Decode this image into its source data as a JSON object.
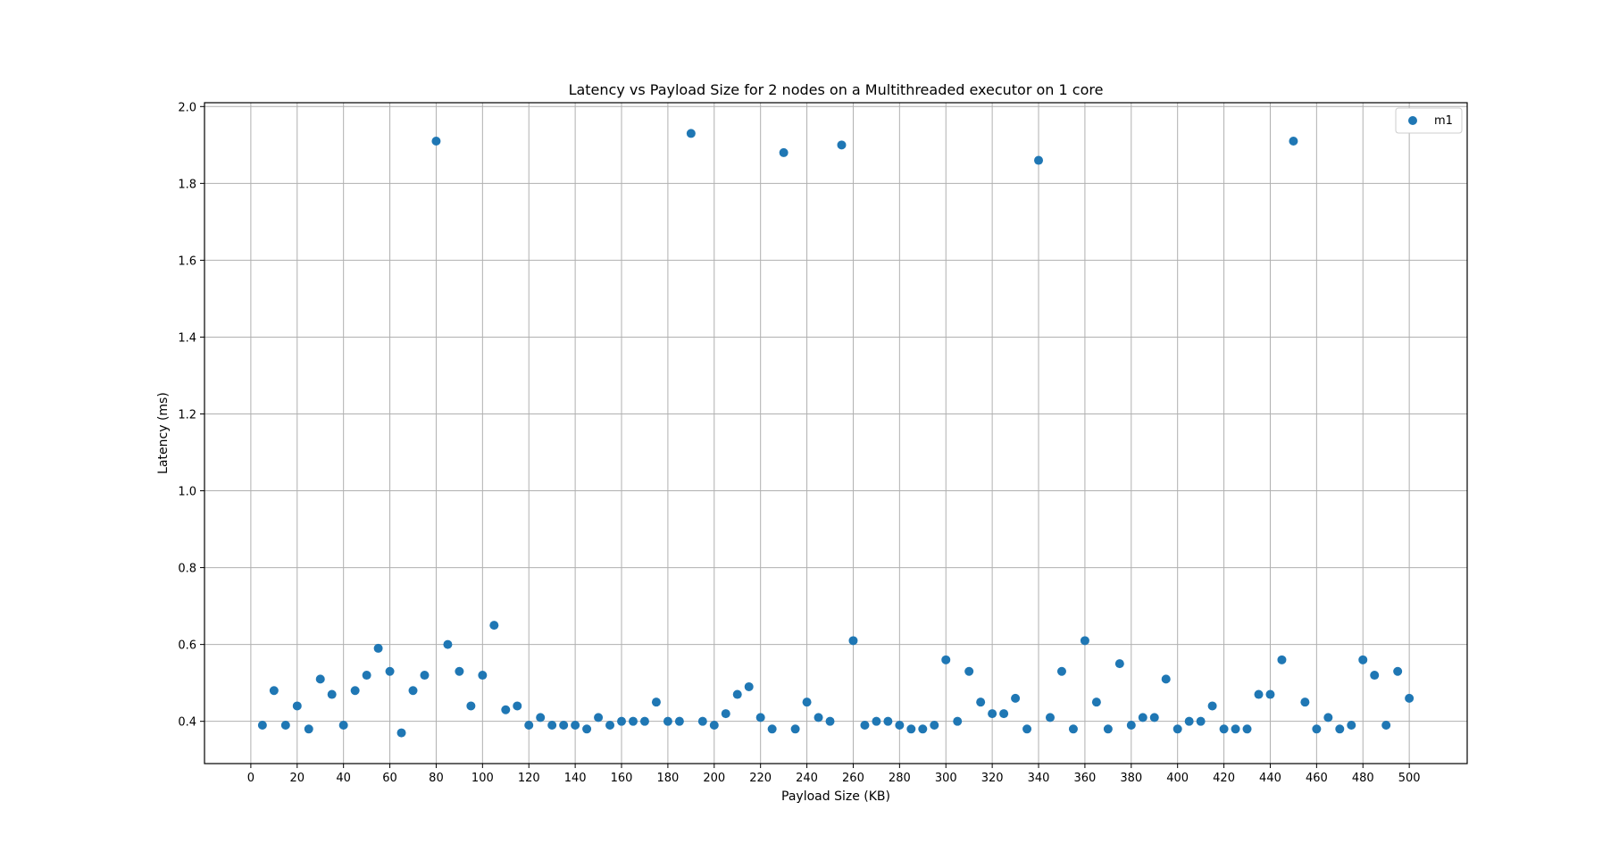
{
  "chart_data": {
    "type": "scatter",
    "title": "Latency vs Payload Size for 2 nodes on a Multithreaded executor on 1 core",
    "xlabel": "Payload Size (KB)",
    "ylabel": "Latency (ms)",
    "xlim": [
      -20,
      525
    ],
    "ylim": [
      0.29,
      2.01
    ],
    "xticks": [
      0,
      20,
      40,
      60,
      80,
      100,
      120,
      140,
      160,
      180,
      200,
      220,
      240,
      260,
      280,
      300,
      320,
      340,
      360,
      380,
      400,
      420,
      440,
      460,
      480,
      500
    ],
    "yticks": [
      0.4,
      0.6,
      0.8,
      1.0,
      1.2,
      1.4,
      1.6,
      1.8,
      2.0
    ],
    "ytick_labels": [
      "0.4",
      "0.6",
      "0.8",
      "1.0",
      "1.2",
      "1.4",
      "1.6",
      "1.8",
      "2.0"
    ],
    "grid": true,
    "legend_position": "top-right",
    "series": [
      {
        "name": "m1",
        "color": "#1f77b4",
        "x": [
          5,
          10,
          15,
          20,
          25,
          30,
          35,
          40,
          45,
          50,
          55,
          60,
          65,
          70,
          75,
          80,
          85,
          90,
          95,
          100,
          105,
          110,
          115,
          120,
          125,
          130,
          135,
          140,
          145,
          150,
          155,
          160,
          165,
          170,
          175,
          180,
          185,
          190,
          195,
          200,
          205,
          210,
          215,
          220,
          225,
          230,
          235,
          240,
          245,
          250,
          255,
          260,
          265,
          270,
          275,
          280,
          285,
          290,
          295,
          300,
          305,
          310,
          315,
          320,
          325,
          330,
          335,
          340,
          345,
          350,
          355,
          360,
          365,
          370,
          375,
          380,
          385,
          390,
          395,
          400,
          405,
          410,
          415,
          420,
          425,
          430,
          435,
          440,
          445,
          450,
          455,
          460,
          465,
          470,
          475,
          480,
          485,
          490,
          495,
          500
        ],
        "y": [
          0.39,
          0.48,
          0.39,
          0.44,
          0.38,
          0.51,
          0.47,
          0.39,
          0.48,
          0.52,
          0.59,
          0.53,
          0.37,
          0.48,
          0.52,
          1.91,
          0.6,
          0.53,
          0.44,
          0.52,
          0.65,
          0.43,
          0.44,
          0.39,
          0.41,
          0.39,
          0.39,
          0.39,
          0.38,
          0.41,
          0.39,
          0.4,
          0.4,
          0.4,
          0.45,
          0.4,
          0.4,
          1.93,
          0.4,
          0.39,
          0.42,
          0.47,
          0.49,
          0.41,
          0.38,
          1.88,
          0.38,
          0.45,
          0.41,
          0.4,
          1.9,
          0.61,
          0.39,
          0.4,
          0.4,
          0.39,
          0.38,
          0.38,
          0.39,
          0.56,
          0.4,
          0.53,
          0.45,
          0.42,
          0.42,
          0.46,
          0.38,
          1.86,
          0.41,
          0.53,
          0.38,
          0.61,
          0.45,
          0.38,
          0.55,
          0.39,
          0.41,
          0.41,
          0.51,
          0.38,
          0.4,
          0.4,
          0.44,
          0.38,
          0.38,
          0.38,
          0.47,
          0.47,
          0.56,
          1.91,
          0.45,
          0.38,
          0.41,
          0.38,
          0.39,
          0.56,
          0.52,
          0.39,
          0.53,
          0.46
        ]
      }
    ]
  }
}
